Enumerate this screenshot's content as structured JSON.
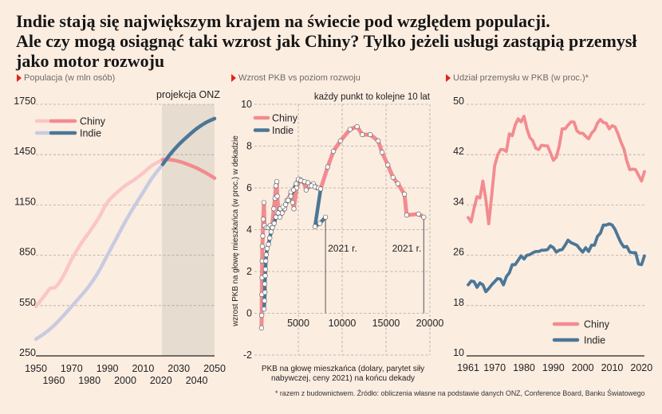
{
  "title_lines": [
    "Indie stają się największym krajem na świecie pod względem populacji.",
    "Ale czy mogą osiągnąć taki wzrost jak Chiny? Tylko jeżeli usługi zastąpią przemysł",
    "jako motor rozwoju"
  ],
  "panels": [
    {
      "subtitle": "Populacja (w mln osób)"
    },
    {
      "subtitle": "Wzrost PKB vs poziom rozwoju"
    },
    {
      "subtitle": "Udział przemysłu w PKB (w proc.)*"
    }
  ],
  "footnote": "* razem z budownictwem. Źródło: obliczenia własne na podstawie danych ONZ, Conference Board, Banku Światowego",
  "colors": {
    "background": "#fcede1",
    "china": "#f28b8f",
    "china_pale": "#fac6c6",
    "india": "#4b7797",
    "india_pale": "#c8cbe0",
    "projection_shade": "#e6dcd0",
    "grid": "#aea69e",
    "accent_triangle": "#e1251b"
  },
  "chart_data": [
    {
      "type": "line",
      "title": "Populacja (w mln osób)",
      "annotation": "projekcja ONZ",
      "projection_start": 2021,
      "xlim": [
        1950,
        2050
      ],
      "ylim": [
        250,
        1750
      ],
      "yticks": [
        250,
        550,
        850,
        1150,
        1450,
        1750
      ],
      "xticks": [
        1950,
        1960,
        1970,
        1980,
        1990,
        2000,
        2010,
        2020,
        2030,
        2040,
        2050
      ],
      "grid": true,
      "legend": "top-left",
      "series": [
        {
          "name": "Chiny",
          "color_key": "china",
          "points": [
            [
              1950,
              544
            ],
            [
              1955,
              612
            ],
            [
              1958,
              652
            ],
            [
              1961,
              660
            ],
            [
              1965,
              720
            ],
            [
              1970,
              825
            ],
            [
              1975,
              915
            ],
            [
              1980,
              990
            ],
            [
              1985,
              1070
            ],
            [
              1990,
              1165
            ],
            [
              1995,
              1220
            ],
            [
              2000,
              1265
            ],
            [
              2005,
              1300
            ],
            [
              2010,
              1340
            ],
            [
              2015,
              1385
            ],
            [
              2021,
              1420
            ],
            [
              2025,
              1420
            ],
            [
              2030,
              1410
            ],
            [
              2035,
              1392
            ],
            [
              2040,
              1370
            ],
            [
              2045,
              1342
            ],
            [
              2050,
              1310
            ]
          ]
        },
        {
          "name": "Indie",
          "color_key": "india",
          "points": [
            [
              1950,
              350
            ],
            [
              1955,
              385
            ],
            [
              1960,
              430
            ],
            [
              1965,
              485
            ],
            [
              1970,
              545
            ],
            [
              1975,
              605
            ],
            [
              1980,
              670
            ],
            [
              1985,
              750
            ],
            [
              1990,
              850
            ],
            [
              1995,
              950
            ],
            [
              2000,
              1050
            ],
            [
              2005,
              1140
            ],
            [
              2010,
              1225
            ],
            [
              2015,
              1310
            ],
            [
              2021,
              1392
            ],
            [
              2025,
              1450
            ],
            [
              2030,
              1510
            ],
            [
              2035,
              1560
            ],
            [
              2040,
              1605
            ],
            [
              2045,
              1640
            ],
            [
              2050,
              1665
            ]
          ]
        }
      ]
    },
    {
      "type": "scatter",
      "title": "Wzrost PKB vs poziom rozwoju",
      "annotation": "każdy punkt to kolejne 10 lat",
      "xlabel_lines": [
        "PKB na głowę mieszkańca (dolary, parytet siły",
        "nabywczej, ceny 2021) na końcu dekady"
      ],
      "ylabel": "wzrost PKB na głowę mieszkańca (w proc.) w dekadzie",
      "xlim": [
        0,
        20000
      ],
      "ylim": [
        -2,
        10
      ],
      "xticks": [
        5000,
        10000,
        15000,
        20000
      ],
      "yticks": [
        -2,
        0,
        2,
        4,
        6,
        8,
        10
      ],
      "grid": true,
      "legend": "top-left",
      "end_label": "2021 r.",
      "series": [
        {
          "name": "Chiny",
          "color_key": "china",
          "points": [
            [
              800,
              -0.7
            ],
            [
              830,
              -0.1
            ],
            [
              840,
              0.9
            ],
            [
              860,
              1.7
            ],
            [
              880,
              2.5
            ],
            [
              900,
              3.2
            ],
            [
              950,
              3.7
            ],
            [
              1000,
              4.5
            ],
            [
              1080,
              5.3
            ],
            [
              1150,
              4.2
            ],
            [
              1350,
              4.1
            ],
            [
              1550,
              4.1
            ],
            [
              1800,
              4.2
            ],
            [
              2000,
              4.1
            ],
            [
              2200,
              5.0
            ],
            [
              2350,
              5.5
            ],
            [
              2450,
              6.1
            ],
            [
              2550,
              6.3
            ],
            [
              2600,
              5.6
            ],
            [
              2750,
              4.8
            ],
            [
              2900,
              4.6
            ],
            [
              3150,
              4.8
            ],
            [
              3450,
              5.0
            ],
            [
              3700,
              5.4
            ],
            [
              3950,
              5.5
            ],
            [
              4150,
              5.8
            ],
            [
              4350,
              5.3
            ],
            [
              4500,
              5.0
            ],
            [
              4800,
              6.0
            ],
            [
              5200,
              6.4
            ],
            [
              5600,
              6.3
            ],
            [
              5900,
              5.9
            ],
            [
              6300,
              6.1
            ],
            [
              6700,
              6.2
            ],
            [
              7200,
              6.0
            ],
            [
              7550,
              5.95
            ],
            [
              8350,
              7.0
            ],
            [
              9000,
              7.75
            ],
            [
              9800,
              8.25
            ],
            [
              10900,
              8.8
            ],
            [
              11700,
              8.93
            ],
            [
              12300,
              8.55
            ],
            [
              13200,
              8.55
            ],
            [
              14100,
              8.25
            ],
            [
              14550,
              7.7
            ],
            [
              15200,
              7.1
            ],
            [
              15800,
              6.5
            ],
            [
              16350,
              6.2
            ],
            [
              17100,
              5.7
            ],
            [
              17350,
              4.7
            ],
            [
              18700,
              4.75
            ],
            [
              19300,
              4.6
            ]
          ]
        },
        {
          "name": "Indie",
          "color_key": "india",
          "points": [
            [
              1100,
              0.2
            ],
            [
              1150,
              0.6
            ],
            [
              1200,
              1.0
            ],
            [
              1180,
              1.4
            ],
            [
              1230,
              1.8
            ],
            [
              1260,
              2.1
            ],
            [
              1300,
              2.5
            ],
            [
              1350,
              2.8
            ],
            [
              1450,
              3.1
            ],
            [
              1600,
              3.3
            ],
            [
              1750,
              3.6
            ],
            [
              1900,
              3.9
            ],
            [
              2050,
              4.1
            ],
            [
              2250,
              4.3
            ],
            [
              2450,
              4.6
            ],
            [
              2700,
              4.8
            ],
            [
              2950,
              5.0
            ],
            [
              3250,
              5.1
            ],
            [
              3550,
              5.2
            ],
            [
              3850,
              5.4
            ],
            [
              4150,
              5.6
            ],
            [
              4450,
              5.9
            ],
            [
              4750,
              6.2
            ],
            [
              5000,
              6.4
            ],
            [
              5300,
              6.35
            ],
            [
              5700,
              6.3
            ],
            [
              6100,
              6.25
            ],
            [
              6500,
              6.1
            ],
            [
              6900,
              6.05
            ],
            [
              7300,
              6.0
            ],
            [
              7550,
              5.95
            ],
            [
              6900,
              4.15
            ],
            [
              7450,
              4.3
            ],
            [
              8100,
              4.6
            ]
          ]
        }
      ]
    },
    {
      "type": "line",
      "title": "Udział przemysłu w PKB (w proc.)*",
      "xlim": [
        1961,
        2021
      ],
      "ylim": [
        10,
        50
      ],
      "yticks": [
        10,
        18,
        26,
        34,
        42,
        50
      ],
      "xticks": [
        1961,
        1970,
        1980,
        1990,
        2000,
        2010,
        2020
      ],
      "grid": true,
      "legend": "bottom-right",
      "start_year": 1961,
      "series": [
        {
          "name": "Chiny",
          "color_key": "china",
          "values": [
            32.0,
            31.3,
            33.5,
            35.3,
            35.1,
            37.8,
            34.9,
            31.0,
            35.5,
            40.2,
            41.9,
            42.8,
            42.8,
            42.5,
            45.3,
            45.0,
            46.7,
            47.7,
            47.2,
            48.1,
            46.1,
            44.7,
            44.2,
            43.0,
            42.8,
            43.5,
            43.4,
            43.4,
            42.3,
            41.1,
            41.6,
            43.4,
            46.1,
            46.1,
            46.7,
            47.2,
            47.2,
            45.8,
            45.4,
            45.4,
            44.9,
            44.5,
            45.4,
            45.9,
            47.0,
            47.6,
            47.1,
            47.0,
            46.1,
            46.6,
            46.4,
            45.3,
            44.0,
            42.9,
            41.0,
            39.6,
            39.7,
            39.6,
            38.7,
            37.8,
            39.3
          ]
        },
        {
          "name": "Indie",
          "color_key": "india",
          "values": [
            21.3,
            21.9,
            21.8,
            20.9,
            21.6,
            21.3,
            20.2,
            20.7,
            21.3,
            21.8,
            22.3,
            22.2,
            21.3,
            22.6,
            23.2,
            24.5,
            24.5,
            25.2,
            25.9,
            25.4,
            26.0,
            26.1,
            26.4,
            26.6,
            26.6,
            26.8,
            26.8,
            26.9,
            27.5,
            27.2,
            26.5,
            26.8,
            26.9,
            27.6,
            28.4,
            28.0,
            27.8,
            27.6,
            27.0,
            26.5,
            27.2,
            26.6,
            27.6,
            27.6,
            29.0,
            29.5,
            30.8,
            30.8,
            31.0,
            30.8,
            30.1,
            29.0,
            28.0,
            27.3,
            27.4,
            26.5,
            26.4,
            26.4,
            24.6,
            24.5,
            25.9
          ]
        }
      ]
    }
  ]
}
